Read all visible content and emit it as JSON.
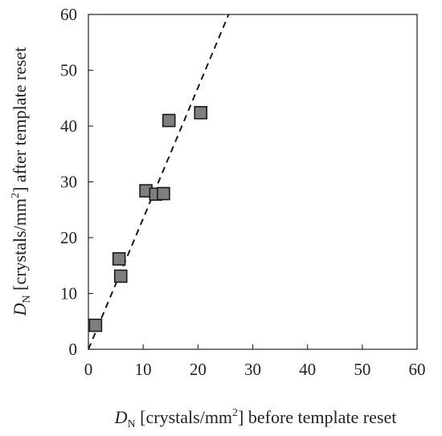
{
  "chart_data": {
    "type": "scatter",
    "title": "",
    "xlabel": {
      "var": "D",
      "sub": "N",
      "pre": " [crystals/mm",
      "sup": "2",
      "post": "] before template reset"
    },
    "ylabel": {
      "var": "D",
      "sub": "N",
      "pre": " [crystals/mm",
      "sup": "2",
      "post": "] after template reset"
    },
    "xlim": [
      0,
      60
    ],
    "ylim": [
      0,
      60
    ],
    "xticks": [
      "0",
      "10",
      "20",
      "30",
      "40",
      "50",
      "60"
    ],
    "yticks": [
      "0",
      "10",
      "20",
      "30",
      "40",
      "50",
      "60"
    ],
    "grid": false,
    "series": [
      {
        "marker": "square",
        "color": "#7f7f7f",
        "edge_color": "#1a1a1a",
        "points": [
          {
            "x": 1.3,
            "y": 4.3
          },
          {
            "x": 5.6,
            "y": 16.2
          },
          {
            "x": 5.9,
            "y": 13.1
          },
          {
            "x": 10.5,
            "y": 28.4
          },
          {
            "x": 12.3,
            "y": 27.8
          },
          {
            "x": 13.7,
            "y": 27.9
          },
          {
            "x": 14.7,
            "y": 41.0
          },
          {
            "x": 20.5,
            "y": 42.4
          }
        ]
      }
    ],
    "trendline": {
      "style": "dashed",
      "color": "#1a1a1a",
      "from": {
        "x": 0,
        "y": 0
      },
      "to": {
        "x": 25.6,
        "y": 60
      }
    }
  }
}
